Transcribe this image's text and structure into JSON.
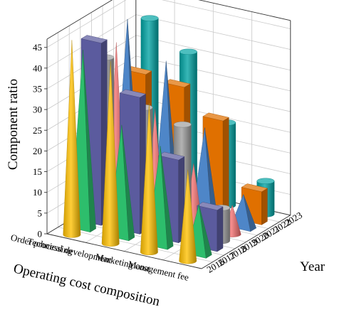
{
  "chart_data": {
    "type": "bar3d",
    "ylabel": "Component ratio",
    "xlabel": "Operating cost composition",
    "zlabel": "Year",
    "categories": [
      "Order processing",
      "Technical development",
      "Marketing cost",
      "Management fee"
    ],
    "years": [
      "2016",
      "2017",
      "2018",
      "2019",
      "2020",
      "2021",
      "2022",
      "2023"
    ],
    "ylim": [
      0,
      47
    ],
    "yticks": [
      0,
      5,
      10,
      15,
      20,
      25,
      30,
      35,
      40,
      45
    ],
    "grid": true,
    "shapes_by_year": [
      "cone",
      "pyramid",
      "box",
      "cylinder",
      "cone",
      "pyramid",
      "box",
      "cylinder"
    ],
    "colors_by_year": [
      "#FFC000",
      "#2DBE6C",
      "#5B5B9E",
      "#9E9E9E",
      "#F26D6D",
      "#4E86C8",
      "#E07000",
      "#00A3A3"
    ],
    "values": [
      [
        47,
        44,
        36,
        22
      ],
      [
        43,
        27,
        24,
        12
      ],
      [
        44,
        33,
        20,
        10
      ],
      [
        38,
        28,
        26,
        8
      ],
      [
        40,
        26,
        15,
        7
      ],
      [
        44,
        36,
        22,
        8
      ],
      [
        30,
        29,
        23,
        8
      ],
      [
        41,
        35,
        20,
        8
      ]
    ]
  }
}
